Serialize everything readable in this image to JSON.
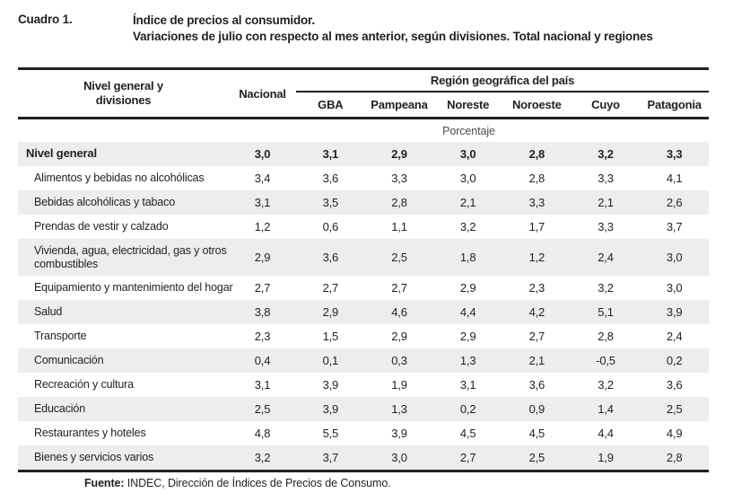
{
  "colors": {
    "row_shade": "#ededee",
    "rule": "#231f20",
    "text": "#231f20",
    "unit_text": "#4d4d4f",
    "background": "#ffffff"
  },
  "title": {
    "label": "Cuadro 1.",
    "line1": "Índice de precios al consumidor.",
    "line2": "Variaciones de julio con respecto al mes anterior, según divisiones. Total nacional y regiones"
  },
  "table": {
    "row_header": "Nivel general y\ndivisiones",
    "col_group_header": "Región geográfica del país",
    "unit_row": "Porcentaje",
    "columns": [
      "Nacional",
      "GBA",
      "Pampeana",
      "Noreste",
      "Noroeste",
      "Cuyo",
      "Patagonia"
    ],
    "rows": [
      {
        "label": "Nivel general",
        "bold": true,
        "values": [
          "3,0",
          "3,1",
          "2,9",
          "3,0",
          "2,8",
          "3,2",
          "3,3"
        ]
      },
      {
        "label": "Alimentos y bebidas no alcohólicas",
        "bold": false,
        "values": [
          "3,4",
          "3,6",
          "3,3",
          "3,0",
          "2,8",
          "3,3",
          "4,1"
        ]
      },
      {
        "label": "Bebidas alcohólicas y tabaco",
        "bold": false,
        "values": [
          "3,1",
          "3,5",
          "2,8",
          "2,1",
          "3,3",
          "2,1",
          "2,6"
        ]
      },
      {
        "label": "Prendas de vestir y calzado",
        "bold": false,
        "values": [
          "1,2",
          "0,6",
          "1,1",
          "3,2",
          "1,7",
          "3,3",
          "3,7"
        ]
      },
      {
        "label": "Vivienda, agua, electricidad, gas y otros\ncombustibles",
        "bold": false,
        "values": [
          "2,9",
          "3,6",
          "2,5",
          "1,8",
          "1,2",
          "2,4",
          "3,0"
        ]
      },
      {
        "label": "Equipamiento y mantenimiento del hogar",
        "bold": false,
        "values": [
          "2,7",
          "2,7",
          "2,7",
          "2,9",
          "2,3",
          "3,2",
          "3,0"
        ]
      },
      {
        "label": "Salud",
        "bold": false,
        "values": [
          "3,8",
          "2,9",
          "4,6",
          "4,4",
          "4,2",
          "5,1",
          "3,9"
        ]
      },
      {
        "label": "Transporte",
        "bold": false,
        "values": [
          "2,3",
          "1,5",
          "2,9",
          "2,9",
          "2,7",
          "2,8",
          "2,4"
        ]
      },
      {
        "label": "Comunicación",
        "bold": false,
        "values": [
          "0,4",
          "0,1",
          "0,3",
          "1,3",
          "2,1",
          "-0,5",
          "0,2"
        ]
      },
      {
        "label": "Recreación y cultura",
        "bold": false,
        "values": [
          "3,1",
          "3,9",
          "1,9",
          "3,1",
          "3,6",
          "3,2",
          "3,6"
        ]
      },
      {
        "label": "Educación",
        "bold": false,
        "values": [
          "2,5",
          "3,9",
          "1,3",
          "0,2",
          "0,9",
          "1,4",
          "2,5"
        ]
      },
      {
        "label": "Restaurantes y hoteles",
        "bold": false,
        "values": [
          "4,8",
          "5,5",
          "3,9",
          "4,5",
          "4,5",
          "4,4",
          "4,9"
        ]
      },
      {
        "label": "Bienes y servicios varios",
        "bold": false,
        "values": [
          "3,2",
          "3,7",
          "3,0",
          "2,7",
          "2,5",
          "1,9",
          "2,8"
        ]
      }
    ]
  },
  "footer": {
    "source_label": "Fuente:",
    "source_text": " INDEC, Dirección de Índices de Precios de Consumo."
  }
}
